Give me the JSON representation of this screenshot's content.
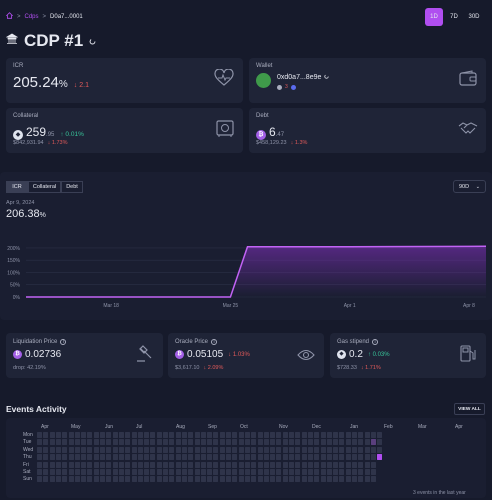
{
  "breadcrumb": {
    "root": "Cdps",
    "separator": ">",
    "current": "D0a7...0001"
  },
  "time_ranges": [
    "1D",
    "7D",
    "30D"
  ],
  "page_title": "CDP #1",
  "icr_card": {
    "label": "ICR",
    "value": "205.24",
    "unit": "%",
    "change": "↓ 2.1"
  },
  "wallet_card": {
    "label": "Wallet",
    "address": "0xd0a7...8e9e",
    "badge_count": "3"
  },
  "collateral_card": {
    "label": "Collateral",
    "value": "259",
    "decimals": ".95",
    "change": "↑ 0.01%",
    "usd": "$842,931.94",
    "usd_change": "↓ 1.73%"
  },
  "debt_card": {
    "label": "Debt",
    "value": "6",
    "decimals": ".47",
    "usd": "$458,129.23",
    "usd_change": "↓ 1.3%"
  },
  "chart_tabs": [
    "ICR",
    "Collateral",
    "Debt"
  ],
  "chart_range_select": "90D",
  "chart_date": "Apr 9, 2024",
  "chart_value": "206.38",
  "chart_value_unit": "%",
  "chart_data": {
    "type": "area",
    "x": [
      "Mar 13",
      "Mar 25",
      "Mar 26",
      "Apr 1",
      "Apr 8",
      "Apr 9"
    ],
    "x_ticks": [
      "Mar 18",
      "Mar 25",
      "Apr 1",
      "Apr 8"
    ],
    "y_ticks": [
      "0%",
      "50%",
      "100%",
      "150%",
      "200%"
    ],
    "ylim": [
      0,
      220
    ],
    "series": [
      {
        "values": [
          0,
          0,
          205,
          205,
          206,
          206.38
        ]
      }
    ],
    "color": "#c263f5",
    "grid": true
  },
  "liq_card": {
    "label": "Liquidation Price",
    "value": "0.02736",
    "sub": "drop: 42.19%"
  },
  "oracle_card": {
    "label": "Oracle Price",
    "value": "0.05105",
    "change": "↓ 1.03%",
    "usd": "$3,617.10",
    "usd_change": "↓ 2.09%"
  },
  "gas_card": {
    "label": "Gas stipend",
    "value": "0.2",
    "change": "↑ 0.03%",
    "usd": "$728.33",
    "usd_change": "↓ 1.71%"
  },
  "events": {
    "title": "Events Activity",
    "view_all": "VIEW ALL",
    "months": [
      "Apr",
      "May",
      "Jun",
      "Jul",
      "Aug",
      "Sep",
      "Oct",
      "Nov",
      "Dec",
      "Jan",
      "Feb",
      "Mar",
      "Apr"
    ],
    "days": [
      "Mon",
      "Tue",
      "Wed",
      "Thu",
      "Fri",
      "Sat",
      "Sun"
    ],
    "footer": "3 events in the last year"
  },
  "colors": {
    "accent": "#b04ef0",
    "background": "#161a2b",
    "card": "#1f2437"
  }
}
